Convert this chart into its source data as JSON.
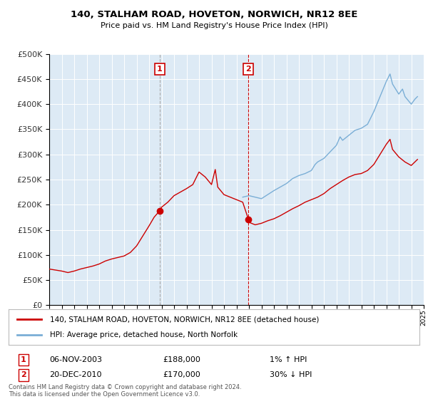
{
  "title": "140, STALHAM ROAD, HOVETON, NORWICH, NR12 8EE",
  "subtitle": "Price paid vs. HM Land Registry's House Price Index (HPI)",
  "ylim": [
    0,
    500000
  ],
  "yticks": [
    0,
    50000,
    100000,
    150000,
    200000,
    250000,
    300000,
    350000,
    400000,
    450000,
    500000
  ],
  "background_color": "#ffffff",
  "plot_bg_color": "#ddeaf5",
  "grid_color": "#ffffff",
  "legend_line1": "140, STALHAM ROAD, HOVETON, NORWICH, NR12 8EE (detached house)",
  "legend_line2": "HPI: Average price, detached house, North Norfolk",
  "transaction1_date": "06-NOV-2003",
  "transaction1_price": "£188,000",
  "transaction1_hpi": "1% ↑ HPI",
  "transaction2_date": "20-DEC-2010",
  "transaction2_price": "£170,000",
  "transaction2_hpi": "30% ↓ HPI",
  "footnote": "Contains HM Land Registry data © Crown copyright and database right 2024.\nThis data is licensed under the Open Government Licence v3.0.",
  "red_line_color": "#cc0000",
  "blue_line_color": "#7aaed6",
  "vline1_x": 2003.85,
  "vline2_x": 2010.97,
  "marker1_y": 188000,
  "marker2_y": 170000,
  "xmin": 1995,
  "xmax": 2025,
  "red_years": [
    1995,
    1995.5,
    1996,
    1996.5,
    1997,
    1997.5,
    1998,
    1998.5,
    1999,
    1999.5,
    2000,
    2000.5,
    2001,
    2001.5,
    2002,
    2002.5,
    2003,
    2003.4,
    2003.85,
    2004,
    2004.5,
    2005,
    2005.5,
    2006,
    2006.5,
    2007,
    2007.5,
    2008,
    2008.3,
    2008.5,
    2009,
    2009.5,
    2010,
    2010.5,
    2010.97,
    2011,
    2011.5,
    2012,
    2012.5,
    2013,
    2013.5,
    2014,
    2014.5,
    2015,
    2015.5,
    2016,
    2016.5,
    2017,
    2017.5,
    2018,
    2018.5,
    2019,
    2019.5,
    2020,
    2020.5,
    2021,
    2021.5,
    2022,
    2022.3,
    2022.5,
    2023,
    2023.5,
    2024,
    2024.5
  ],
  "red_values": [
    72000,
    70000,
    68000,
    65000,
    68000,
    72000,
    75000,
    78000,
    82000,
    88000,
    92000,
    95000,
    98000,
    105000,
    118000,
    138000,
    158000,
    175000,
    188000,
    195000,
    205000,
    218000,
    225000,
    232000,
    240000,
    265000,
    255000,
    240000,
    270000,
    235000,
    220000,
    215000,
    210000,
    205000,
    170000,
    165000,
    160000,
    163000,
    168000,
    172000,
    178000,
    185000,
    192000,
    198000,
    205000,
    210000,
    215000,
    222000,
    232000,
    240000,
    248000,
    255000,
    260000,
    262000,
    268000,
    280000,
    300000,
    320000,
    330000,
    310000,
    295000,
    285000,
    278000,
    290000
  ],
  "blue_years": [
    2010.5,
    2011,
    2011.5,
    2012,
    2012.5,
    2013,
    2013.5,
    2014,
    2014.5,
    2015,
    2015.5,
    2016,
    2016.3,
    2016.5,
    2017,
    2017.5,
    2018,
    2018.3,
    2018.5,
    2019,
    2019.5,
    2020,
    2020.5,
    2021,
    2021.5,
    2022,
    2022.3,
    2022.5,
    2023,
    2023.3,
    2023.5,
    2024,
    2024.3,
    2024.5
  ],
  "blue_values": [
    215000,
    218000,
    215000,
    212000,
    220000,
    228000,
    235000,
    242000,
    252000,
    258000,
    262000,
    268000,
    280000,
    285000,
    292000,
    305000,
    318000,
    335000,
    328000,
    338000,
    348000,
    352000,
    360000,
    385000,
    415000,
    445000,
    460000,
    440000,
    420000,
    430000,
    415000,
    400000,
    410000,
    415000
  ]
}
